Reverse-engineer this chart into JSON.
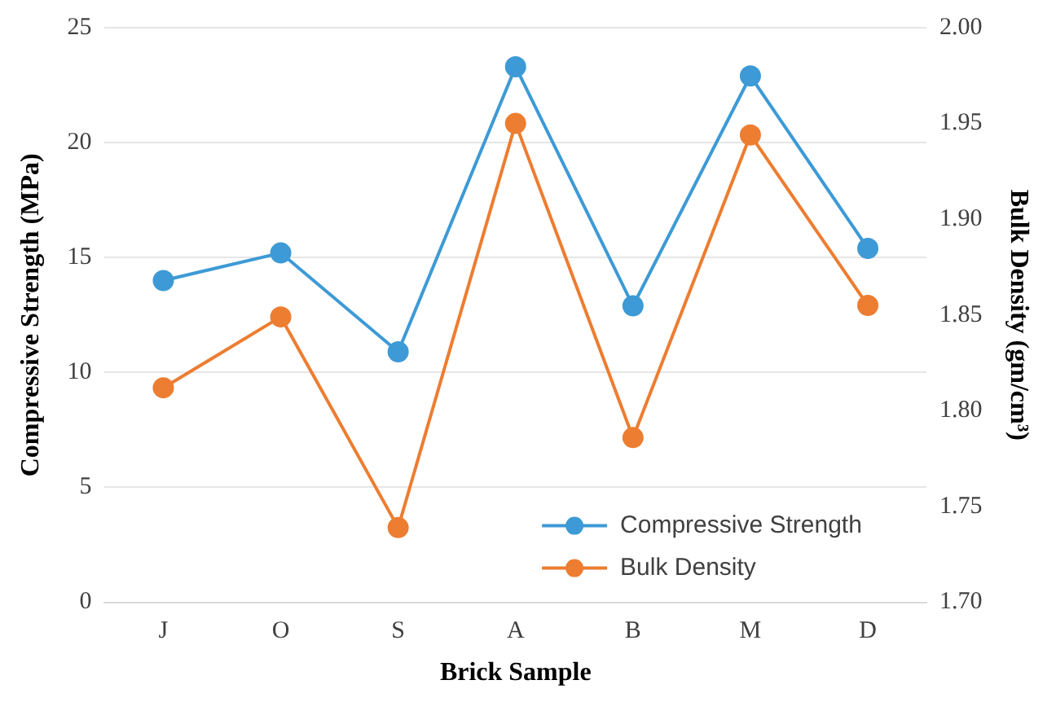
{
  "chart_data": {
    "type": "line",
    "xlabel": "Brick Sample",
    "ylabel": "Compressive Strength (MPa)",
    "y2label": "Bulk Density (gm/cm³)",
    "categories": [
      "J",
      "O",
      "S",
      "A",
      "B",
      "M",
      "D"
    ],
    "series": [
      {
        "name": "Compressive Strength",
        "color": "#3d9ad6",
        "values": [
          14.0,
          15.2,
          10.9,
          23.3,
          12.9,
          22.9,
          15.4
        ]
      },
      {
        "name": "Bulk Density",
        "color": "#ed7d31",
        "axis": "y2",
        "values": [
          1.812,
          1.849,
          1.739,
          1.95,
          1.786,
          1.944,
          1.855
        ]
      }
    ],
    "ylim": [
      0,
      25
    ],
    "yticks": [
      0,
      5,
      10,
      15,
      20,
      25
    ],
    "y2lim": [
      1.7,
      2.0
    ],
    "y2ticks": [
      {
        "value": 1.7,
        "label": "1.70"
      },
      {
        "value": 1.75,
        "label": "1.75"
      },
      {
        "value": 1.8,
        "label": "1.80"
      },
      {
        "value": 1.85,
        "label": "1.85"
      },
      {
        "value": 1.9,
        "label": "1.90"
      },
      {
        "value": 1.95,
        "label": "1.95"
      },
      {
        "value": 2.0,
        "label": "2.00"
      }
    ],
    "grid": "y",
    "legend": "bottom right",
    "marker": "circle",
    "line_style": "solid"
  }
}
